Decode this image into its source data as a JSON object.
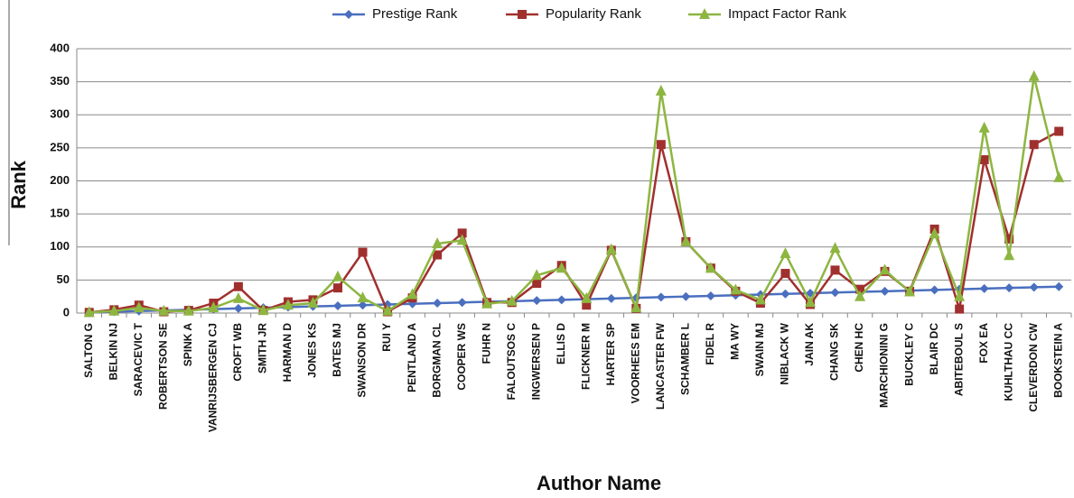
{
  "chart_data": {
    "type": "line",
    "y_label": "Rank",
    "x_label": "Author Name",
    "categories": [
      "SALTON G",
      "BELKIN NJ",
      "SARACEVIC T",
      "ROBERTSON SE",
      "SPINK A",
      "VANRIJSBERGEN CJ",
      "CROFT WB",
      "SMITH JR",
      "HARMAN D",
      "JONES KS",
      "BATES MJ",
      "SWANSON DR",
      "RUI Y",
      "PENTLAND A",
      "BORGMAN CL",
      "COOPER WS",
      "FUHR N",
      "FALOUTSOS C",
      "INGWERSEN P",
      "ELLIS D",
      "FLICKNER M",
      "HARTER SP",
      "VOORHEES EM",
      "LANCASTER FW",
      "SCHAMBER L",
      "FIDEL R",
      "MA WY",
      "SWAIN MJ",
      "NIBLACK W",
      "JAIN AK",
      "CHANG SK",
      "CHEN HC",
      "MARCHIONINI G",
      "BUCKLEY C",
      "BLAIR DC",
      "ABITEBOUL S",
      "FOX EA",
      "KUHLTHAU CC",
      "CLEVERDON CW",
      "BOOKSTEIN A"
    ],
    "series": [
      {
        "name": "Prestige Rank",
        "color": "#4a6fbf",
        "marker": "diamond",
        "values": [
          1,
          2,
          3,
          4,
          5,
          6,
          7,
          8,
          9,
          10,
          11,
          12,
          13,
          14,
          15,
          16,
          17,
          18,
          19,
          20,
          21,
          22,
          23,
          24,
          25,
          26,
          27,
          28,
          29,
          30,
          31,
          32,
          33,
          34,
          35,
          36,
          37,
          38,
          39,
          40
        ]
      },
      {
        "name": "Popularity Rank",
        "color": "#a0302e",
        "marker": "square",
        "values": [
          1,
          5,
          12,
          2,
          4,
          15,
          40,
          4,
          17,
          20,
          38,
          92,
          2,
          23,
          88,
          121,
          16,
          16,
          45,
          72,
          12,
          95,
          7,
          255,
          108,
          68,
          33,
          15,
          60,
          13,
          65,
          36,
          63,
          33,
          127,
          6,
          232,
          112,
          255,
          275
        ]
      },
      {
        "name": "Impact Factor Rank",
        "color": "#8db641",
        "marker": "triangle",
        "values": [
          1,
          3,
          8,
          3,
          3,
          8,
          22,
          4,
          12,
          15,
          55,
          23,
          3,
          28,
          105,
          110,
          14,
          18,
          57,
          68,
          22,
          96,
          8,
          336,
          108,
          68,
          35,
          20,
          90,
          16,
          98,
          25,
          65,
          32,
          120,
          25,
          280,
          87,
          358,
          205
        ]
      }
    ],
    "ylim": [
      0,
      400
    ],
    "yticks": [
      0,
      50,
      100,
      150,
      200,
      250,
      300,
      350,
      400
    ],
    "grid": true,
    "legend": "top"
  }
}
